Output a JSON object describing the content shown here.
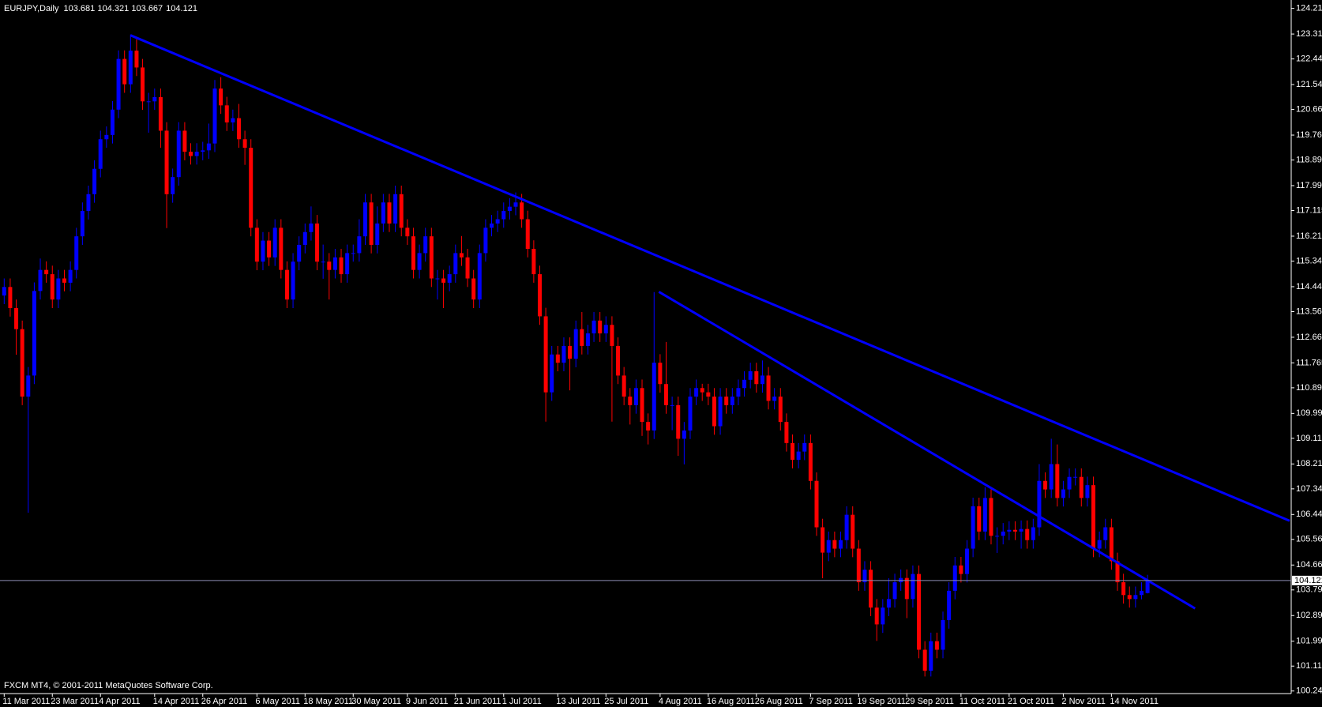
{
  "chart_data": {
    "type": "candlestick",
    "symbol": "EURJPY,Daily",
    "footer": "FXCM MT4, © 2001-2011 MetaQuotes Software Corp.",
    "up_color": "#0000ff",
    "down_color": "#ff0000",
    "background": "#000000",
    "current_line_color": "#8c8cb4",
    "ylim": [
      100.15,
      124.51
    ],
    "yticks": [
      124.215,
      123.315,
      {
        "value": 122.44,
        "label": "122.440"
      },
      {
        "value": 121.54,
        "label": "121.540"
      },
      120.665,
      119.765,
      {
        "value": 118.89,
        "label": "118.890"
      },
      {
        "value": 117.99,
        "label": "117.990"
      },
      117.115,
      116.215,
      {
        "value": 115.34,
        "label": "115.340"
      },
      {
        "value": 114.44,
        "label": "114.440"
      },
      113.565,
      112.665,
      111.765,
      {
        "value": 110.89,
        "label": "110.890"
      },
      {
        "value": 109.99,
        "label": "109.990"
      },
      109.115,
      108.215,
      {
        "value": 107.34,
        "label": "107.340"
      },
      {
        "value": 106.44,
        "label": "106.440"
      },
      105.565,
      104.665,
      {
        "value": 103.79,
        "label": "103.790"
      },
      {
        "value": 102.89,
        "label": "102.890"
      },
      {
        "value": 101.99,
        "label": "101.990"
      },
      101.115,
      {
        "value": 100.24,
        "label": "100.240"
      }
    ],
    "categories": [
      "11 Mar 2011",
      null,
      null,
      null,
      null,
      null,
      null,
      null,
      "23 Mar 2011",
      null,
      null,
      null,
      null,
      null,
      null,
      null,
      "4 Apr 2011",
      null,
      null,
      null,
      null,
      null,
      null,
      null,
      null,
      "14 Apr 2011",
      null,
      null,
      null,
      null,
      null,
      null,
      null,
      "26 Apr 2011",
      null,
      null,
      null,
      null,
      null,
      null,
      null,
      null,
      "6 May 2011",
      null,
      null,
      null,
      null,
      null,
      null,
      null,
      "18 May 2011",
      null,
      null,
      null,
      null,
      null,
      null,
      null,
      "30 May 2011",
      null,
      null,
      null,
      null,
      null,
      null,
      null,
      null,
      "9 Jun 2011",
      null,
      null,
      null,
      null,
      null,
      null,
      null,
      "21 Jun 2011",
      null,
      null,
      null,
      null,
      null,
      null,
      null,
      "1 Jul 2011",
      null,
      null,
      null,
      null,
      null,
      null,
      null,
      null,
      "13 Jul 2011",
      null,
      null,
      null,
      null,
      null,
      null,
      null,
      "25 Jul 2011",
      null,
      null,
      null,
      null,
      null,
      null,
      null,
      null,
      "4 Aug 2011",
      null,
      null,
      null,
      null,
      null,
      null,
      null,
      "16 Aug 2011",
      null,
      null,
      null,
      null,
      null,
      null,
      null,
      "26 Aug 2011",
      null,
      null,
      null,
      null,
      null,
      null,
      null,
      null,
      "7 Sep 2011",
      null,
      null,
      null,
      null,
      null,
      null,
      null,
      "19 Sep 2011",
      null,
      null,
      null,
      null,
      null,
      null,
      null,
      "29 Sep 2011",
      null,
      null,
      null,
      null,
      null,
      null,
      null,
      null,
      "11 Oct 2011",
      null,
      null,
      null,
      null,
      null,
      null,
      null,
      "21 Oct 2011",
      null,
      null,
      null,
      null,
      null,
      null,
      null,
      null,
      "2 Nov 2011",
      null,
      null,
      null,
      null,
      null,
      null,
      null,
      "14 Nov 2011",
      null,
      null,
      null,
      null,
      null,
      null
    ],
    "open": [
      114.13,
      114.43,
      113.69,
      112.95,
      110.58,
      111.32,
      114.29,
      115.03,
      114.88,
      113.99,
      114.73,
      114.58,
      115.03,
      116.21,
      117.1,
      117.69,
      118.58,
      119.62,
      119.77,
      120.66,
      122.44,
      121.55,
      122.73,
      122.14,
      120.95,
      120.95,
      121.1,
      119.92,
      117.69,
      118.29,
      119.92,
      119.18,
      119.03,
      119.18,
      119.23,
      119.47,
      121.4,
      120.81,
      120.21,
      120.36,
      119.62,
      119.32,
      116.51,
      115.32,
      116.06,
      115.47,
      116.51,
      115.03,
      113.99,
      115.32,
      115.91,
      116.36,
      116.66,
      115.32,
      115.32,
      115.03,
      115.47,
      114.88,
      115.62,
      115.62,
      116.21,
      117.4,
      115.91,
      116.66,
      117.4,
      116.66,
      117.69,
      116.51,
      116.21,
      115.03,
      115.62,
      116.21,
      114.73,
      114.73,
      114.58,
      114.88,
      115.62,
      115.47,
      114.73,
      113.99,
      115.62,
      116.51,
      116.66,
      116.81,
      117.1,
      117.25,
      117.4,
      116.81,
      115.77,
      114.88,
      113.4,
      110.73,
      112.06,
      111.77,
      112.36,
      111.91,
      112.95,
      112.36,
      112.8,
      113.25,
      112.8,
      113.1,
      112.36,
      111.32,
      110.58,
      110.28,
      110.88,
      109.69,
      109.39,
      111.77,
      111.02,
      110.28,
      110.28,
      109.1,
      109.39,
      110.58,
      110.88,
      110.73,
      110.58,
      109.54,
      110.58,
      110.28,
      110.58,
      110.88,
      111.17,
      111.47,
      111.02,
      111.32,
      110.43,
      110.58,
      109.69,
      108.95,
      108.36,
      108.65,
      108.95,
      107.62,
      105.99,
      105.1,
      105.54,
      105.24,
      105.54,
      106.43,
      105.24,
      104.06,
      104.5,
      103.17,
      102.58,
      103.17,
      103.47,
      104.06,
      104.21,
      103.47,
      104.35,
      101.69,
      100.95,
      101.99,
      101.69,
      102.73,
      103.76,
      104.65,
      104.35,
      105.24,
      106.73,
      105.84,
      107.02,
      105.69,
      105.69,
      105.84,
      105.9,
      105.84,
      105.93,
      105.54,
      105.99,
      107.62,
      107.32,
      108.21,
      107.02,
      107.32,
      107.76,
      107.76,
      107.02,
      107.47,
      105.24,
      105.54,
      105.99,
      104.8,
      104.06,
      103.61,
      103.47,
      103.61,
      103.681
    ],
    "high": [
      114.73,
      114.73,
      113.99,
      113.25,
      111.62,
      114.59,
      115.43,
      115.33,
      115.18,
      115.03,
      115.03,
      115.33,
      116.51,
      117.4,
      117.99,
      118.88,
      119.92,
      120.07,
      120.96,
      122.74,
      122.74,
      123.3,
      123.13,
      122.44,
      121.25,
      121.4,
      121.4,
      120.22,
      118.59,
      120.22,
      120.22,
      119.48,
      119.48,
      119.53,
      120.17,
      121.7,
      121.8,
      121.11,
      120.66,
      120.86,
      119.92,
      119.62,
      116.81,
      116.36,
      116.36,
      116.81,
      116.81,
      115.33,
      115.62,
      116.21,
      116.66,
      117.26,
      116.96,
      115.92,
      115.62,
      115.77,
      115.77,
      115.92,
      115.92,
      116.81,
      117.7,
      117.7,
      117.26,
      117.7,
      117.7,
      117.99,
      117.99,
      116.81,
      116.51,
      115.92,
      116.51,
      116.51,
      115.03,
      115.03,
      115.18,
      115.92,
      116.22,
      115.77,
      115.03,
      115.92,
      116.81,
      116.96,
      117.11,
      117.4,
      117.55,
      117.75,
      117.7,
      117.11,
      116.07,
      115.18,
      113.7,
      112.36,
      112.36,
      112.66,
      112.66,
      113.25,
      113.55,
      113.1,
      113.55,
      113.55,
      113.4,
      113.4,
      112.66,
      111.62,
      110.88,
      111.18,
      111.18,
      109.99,
      114.25,
      112.07,
      112.5,
      110.58,
      110.58,
      109.69,
      110.88,
      111.18,
      111.03,
      111.03,
      110.88,
      110.88,
      110.88,
      110.88,
      111.18,
      111.47,
      111.77,
      111.77,
      111.85,
      111.62,
      110.88,
      110.88,
      109.99,
      109.25,
      108.95,
      109.25,
      109.25,
      107.92,
      106.29,
      105.84,
      105.84,
      105.84,
      106.73,
      106.73,
      105.54,
      104.8,
      104.8,
      103.47,
      103.47,
      104.2,
      104.36,
      104.51,
      104.51,
      104.65,
      104.65,
      101.99,
      102.29,
      102.29,
      103.03,
      104.06,
      104.95,
      104.95,
      105.54,
      107.03,
      107.03,
      107.4,
      107.32,
      105.99,
      106.14,
      106.2,
      106.2,
      106.23,
      106.23,
      106.29,
      108.21,
      107.92,
      109.1,
      108.9,
      107.62,
      108.06,
      108.06,
      108.06,
      107.77,
      107.77,
      105.84,
      106.29,
      106.29,
      105.1,
      104.36,
      103.91,
      103.91,
      104.06,
      104.321
    ],
    "low": [
      113.83,
      113.39,
      112.05,
      110.28,
      106.5,
      111.02,
      113.99,
      114.58,
      113.69,
      113.69,
      114.28,
      114.28,
      114.73,
      115.91,
      116.8,
      117.39,
      118.28,
      119.32,
      119.47,
      120.36,
      121.25,
      121.25,
      121.84,
      120.65,
      119.85,
      120.65,
      119.32,
      116.5,
      117.39,
      117.99,
      118.88,
      118.73,
      118.73,
      118.88,
      118.93,
      119.17,
      120.51,
      119.91,
      119.91,
      119.32,
      118.72,
      116.21,
      115.02,
      115.02,
      115.17,
      115.17,
      114.73,
      113.69,
      113.69,
      115.02,
      115.61,
      116.06,
      115.02,
      114.72,
      113.99,
      114.73,
      114.58,
      114.58,
      115.32,
      115.32,
      115.91,
      115.61,
      115.61,
      116.36,
      116.36,
      116.36,
      116.21,
      115.91,
      114.73,
      114.73,
      115.32,
      114.43,
      113.99,
      113.69,
      114.28,
      114.58,
      115.17,
      114.43,
      113.69,
      113.69,
      115.32,
      116.21,
      116.36,
      116.51,
      116.8,
      116.95,
      116.51,
      115.47,
      114.58,
      113.1,
      109.7,
      110.43,
      111.47,
      111.47,
      110.8,
      111.61,
      112.06,
      112.06,
      112.5,
      112.5,
      112.5,
      109.7,
      111.02,
      110.28,
      109.6,
      109.98,
      109.2,
      108.9,
      109.09,
      110.72,
      109.98,
      109.4,
      108.5,
      108.2,
      109.09,
      110.28,
      110.43,
      110.28,
      109.24,
      109.24,
      109.98,
      109.98,
      110.28,
      110.58,
      110.87,
      110.72,
      110.72,
      110.13,
      110.13,
      109.39,
      108.65,
      108.06,
      108.06,
      108.35,
      107.32,
      105.69,
      104.2,
      104.8,
      104.94,
      104.94,
      105.24,
      104.94,
      103.76,
      103.76,
      102.87,
      102.0,
      102.28,
      102.87,
      103.17,
      103.76,
      102.8,
      103.17,
      101.39,
      100.75,
      100.75,
      101.39,
      101.39,
      102.43,
      103.46,
      104.05,
      104.05,
      104.94,
      105.54,
      105.54,
      105.39,
      105.09,
      105.39,
      105.54,
      105.54,
      105.24,
      105.24,
      105.24,
      105.69,
      107.02,
      107.02,
      106.72,
      106.72,
      107.02,
      107.46,
      106.72,
      106.72,
      104.94,
      104.94,
      105.24,
      104.5,
      103.76,
      103.31,
      103.17,
      103.17,
      103.46,
      103.667
    ],
    "close": [
      114.43,
      113.69,
      112.95,
      110.58,
      111.32,
      114.29,
      115.03,
      114.88,
      113.99,
      114.73,
      114.58,
      115.03,
      116.21,
      117.1,
      117.69,
      118.58,
      119.62,
      119.77,
      120.66,
      122.44,
      121.55,
      122.73,
      122.14,
      120.95,
      120.95,
      121.1,
      119.92,
      117.69,
      118.29,
      119.92,
      119.18,
      119.03,
      119.18,
      119.23,
      119.47,
      121.4,
      120.81,
      120.21,
      120.36,
      119.62,
      119.32,
      116.51,
      115.32,
      116.06,
      115.47,
      116.51,
      115.03,
      113.99,
      115.32,
      115.91,
      116.36,
      116.66,
      115.32,
      115.32,
      115.03,
      115.47,
      114.88,
      115.62,
      115.62,
      116.21,
      117.4,
      115.91,
      116.66,
      117.4,
      116.66,
      117.69,
      116.51,
      116.21,
      115.03,
      115.62,
      116.21,
      114.73,
      114.73,
      114.58,
      114.88,
      115.62,
      115.47,
      114.73,
      113.99,
      115.62,
      116.51,
      116.66,
      116.81,
      117.1,
      117.25,
      117.4,
      116.81,
      115.77,
      114.88,
      113.4,
      110.73,
      112.06,
      111.77,
      112.36,
      111.91,
      112.95,
      112.36,
      112.8,
      113.25,
      112.8,
      113.1,
      112.36,
      111.32,
      110.58,
      110.28,
      110.88,
      109.69,
      109.39,
      111.77,
      111.02,
      110.28,
      110.28,
      109.1,
      109.39,
      110.58,
      110.88,
      110.73,
      110.58,
      109.54,
      110.58,
      110.28,
      110.58,
      110.88,
      111.17,
      111.47,
      111.02,
      111.32,
      110.43,
      110.58,
      109.69,
      108.95,
      108.36,
      108.65,
      108.95,
      107.62,
      105.99,
      105.1,
      105.54,
      105.24,
      105.54,
      106.43,
      105.24,
      104.06,
      104.5,
      103.17,
      102.58,
      103.17,
      103.47,
      104.06,
      104.21,
      103.47,
      104.35,
      101.69,
      100.95,
      101.99,
      101.69,
      102.73,
      103.76,
      104.65,
      104.35,
      105.24,
      106.73,
      105.84,
      107.02,
      105.69,
      105.69,
      105.84,
      105.9,
      105.84,
      105.93,
      105.54,
      105.99,
      107.62,
      107.32,
      108.21,
      107.02,
      107.32,
      107.76,
      107.76,
      107.02,
      107.47,
      105.24,
      105.54,
      105.99,
      104.8,
      104.06,
      103.61,
      103.47,
      103.61,
      103.76,
      104.121
    ],
    "trendlines": [
      {
        "x0": 21,
        "y0": 123.27,
        "x1": 213.6,
        "y1": 106.22,
        "color": "#0000ff"
      },
      {
        "x0": 108.8,
        "y0": 114.26,
        "x1": 197.9,
        "y1": 103.14,
        "color": "#0000ff"
      }
    ]
  }
}
